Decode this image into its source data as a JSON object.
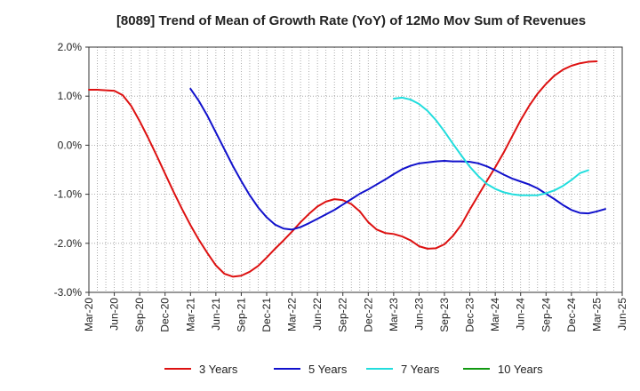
{
  "chart_data": {
    "type": "line",
    "title": "[8089]  Trend of Mean of Growth Rate (YoY) of 12Mo Mov Sum of Revenues",
    "xlabel": "",
    "ylabel": "",
    "ylim": [
      -3.0,
      2.0
    ],
    "yticks": [
      "2.0%",
      "1.0%",
      "0.0%",
      "-1.0%",
      "-2.0%",
      "-3.0%"
    ],
    "ytick_values": [
      2.0,
      1.0,
      0.0,
      -1.0,
      -2.0,
      -3.0
    ],
    "xticks": [
      "Mar-20",
      "Jun-20",
      "Sep-20",
      "Dec-20",
      "Mar-21",
      "Jun-21",
      "Sep-21",
      "Dec-21",
      "Mar-22",
      "Jun-22",
      "Sep-22",
      "Dec-22",
      "Mar-23",
      "Jun-23",
      "Sep-23",
      "Dec-23",
      "Mar-24",
      "Jun-24",
      "Sep-24",
      "Dec-24",
      "Mar-25",
      "Jun-25"
    ],
    "x_start": "Mar-20",
    "x_end": "Jun-25",
    "grid": true,
    "legend_position": "bottom",
    "series": [
      {
        "name": "3 Years",
        "color": "#dd1111",
        "start_month_index": 0,
        "values": [
          1.13,
          1.13,
          1.12,
          1.11,
          1.02,
          0.8,
          0.49,
          0.15,
          -0.21,
          -0.58,
          -0.95,
          -1.3,
          -1.63,
          -1.93,
          -2.2,
          -2.45,
          -2.62,
          -2.68,
          -2.66,
          -2.58,
          -2.46,
          -2.29,
          -2.11,
          -1.94,
          -1.76,
          -1.57,
          -1.4,
          -1.25,
          -1.15,
          -1.1,
          -1.12,
          -1.2,
          -1.35,
          -1.57,
          -1.72,
          -1.79,
          -1.81,
          -1.86,
          -1.94,
          -2.06,
          -2.11,
          -2.1,
          -2.02,
          -1.85,
          -1.62,
          -1.31,
          -1.02,
          -0.73,
          -0.45,
          -0.15,
          0.18,
          0.51,
          0.8,
          1.05,
          1.25,
          1.42,
          1.54,
          1.62,
          1.67,
          1.7,
          1.71
        ]
      },
      {
        "name": "5 Years",
        "color": "#1111cc",
        "start_month_index": 12,
        "values": [
          1.15,
          0.9,
          0.6,
          0.26,
          -0.08,
          -0.42,
          -0.73,
          -1.02,
          -1.27,
          -1.47,
          -1.62,
          -1.7,
          -1.72,
          -1.67,
          -1.59,
          -1.5,
          -1.41,
          -1.32,
          -1.21,
          -1.1,
          -0.99,
          -0.9,
          -0.8,
          -0.7,
          -0.59,
          -0.49,
          -0.42,
          -0.37,
          -0.35,
          -0.33,
          -0.32,
          -0.33,
          -0.33,
          -0.34,
          -0.37,
          -0.43,
          -0.51,
          -0.6,
          -0.68,
          -0.74,
          -0.8,
          -0.88,
          -0.99,
          -1.1,
          -1.22,
          -1.32,
          -1.38,
          -1.39,
          -1.35,
          -1.3
        ]
      },
      {
        "name": "7 Years",
        "color": "#22dddd",
        "start_month_index": 36,
        "values": [
          0.95,
          0.97,
          0.93,
          0.84,
          0.7,
          0.51,
          0.28,
          0.03,
          -0.21,
          -0.44,
          -0.63,
          -0.79,
          -0.89,
          -0.96,
          -1.0,
          -1.02,
          -1.02,
          -1.02,
          -0.98,
          -0.92,
          -0.83,
          -0.71,
          -0.57,
          -0.51
        ]
      },
      {
        "name": "10 Years",
        "color": "#119911",
        "start_month_index": 0,
        "values": []
      }
    ]
  }
}
